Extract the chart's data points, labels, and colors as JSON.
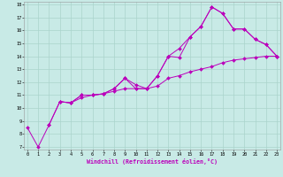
{
  "xlabel": "Windchill (Refroidissement éolien,°C)",
  "bg_color": "#c8eae6",
  "grid_color": "#aad4cc",
  "line_color": "#bb00bb",
  "xlim": [
    -0.3,
    23.3
  ],
  "ylim": [
    6.8,
    18.2
  ],
  "xticks": [
    0,
    1,
    2,
    3,
    4,
    5,
    6,
    7,
    8,
    9,
    10,
    11,
    12,
    13,
    14,
    15,
    16,
    17,
    18,
    19,
    20,
    21,
    22,
    23
  ],
  "yticks": [
    7,
    8,
    9,
    10,
    11,
    12,
    13,
    14,
    15,
    16,
    17,
    18
  ],
  "lines": [
    {
      "x": [
        0,
        1,
        2,
        3,
        4,
        5,
        6,
        7,
        8,
        9,
        10,
        11,
        12,
        13,
        14,
        15,
        16,
        17,
        18,
        19,
        20,
        21,
        22,
        23
      ],
      "y": [
        8.5,
        7.0,
        8.7,
        10.5,
        10.4,
        10.8,
        11.0,
        11.1,
        11.3,
        11.5,
        11.5,
        11.5,
        11.7,
        12.3,
        12.5,
        12.8,
        13.0,
        13.2,
        13.5,
        13.7,
        13.8,
        13.9,
        14.0,
        14.0
      ]
    },
    {
      "x": [
        3,
        4,
        5,
        6,
        7,
        8,
        9,
        10,
        11,
        12,
        13,
        14,
        15,
        16,
        17,
        18,
        19,
        20,
        21,
        22,
        23
      ],
      "y": [
        10.5,
        10.4,
        11.0,
        11.0,
        11.1,
        11.5,
        12.3,
        11.5,
        11.5,
        12.5,
        14.0,
        13.9,
        15.5,
        16.3,
        17.8,
        17.3,
        16.1,
        16.1,
        15.3,
        14.9,
        14.0
      ]
    },
    {
      "x": [
        2,
        3,
        4,
        5,
        6,
        7,
        8,
        9,
        10,
        11,
        12,
        13,
        14,
        15,
        16,
        17,
        18,
        19,
        20,
        21,
        22,
        23
      ],
      "y": [
        8.7,
        10.5,
        10.4,
        11.0,
        11.0,
        11.1,
        11.5,
        12.3,
        11.8,
        11.5,
        12.5,
        14.0,
        14.6,
        15.5,
        16.3,
        17.8,
        17.3,
        16.1,
        16.1,
        15.3,
        14.9,
        14.0
      ]
    }
  ]
}
